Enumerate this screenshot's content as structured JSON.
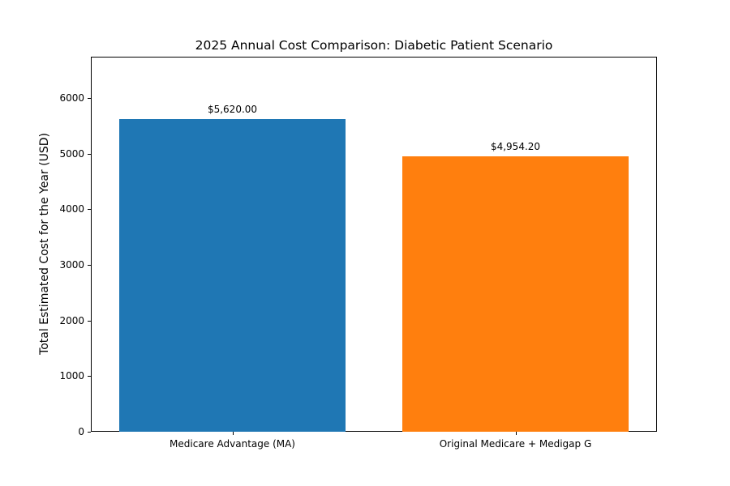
{
  "chart_data": {
    "type": "bar",
    "title": "2025 Annual Cost Comparison: Diabetic Patient Scenario",
    "xlabel": "",
    "ylabel": "Total Estimated Cost for the Year (USD)",
    "categories": [
      "Medicare Advantage (MA)",
      "Original Medicare + Medigap G"
    ],
    "values": [
      5620.0,
      4954.2
    ],
    "value_labels": [
      "$5,620.00",
      "$4,954.20"
    ],
    "bar_colors": [
      "#1f77b4",
      "#ff7f0e"
    ],
    "yticks": [
      0,
      1000,
      2000,
      3000,
      4000,
      5000,
      6000
    ],
    "ylim": [
      0,
      6740
    ],
    "grid": false,
    "legend": "none",
    "background_color": "#ffffff",
    "axis_color": "#000000"
  }
}
